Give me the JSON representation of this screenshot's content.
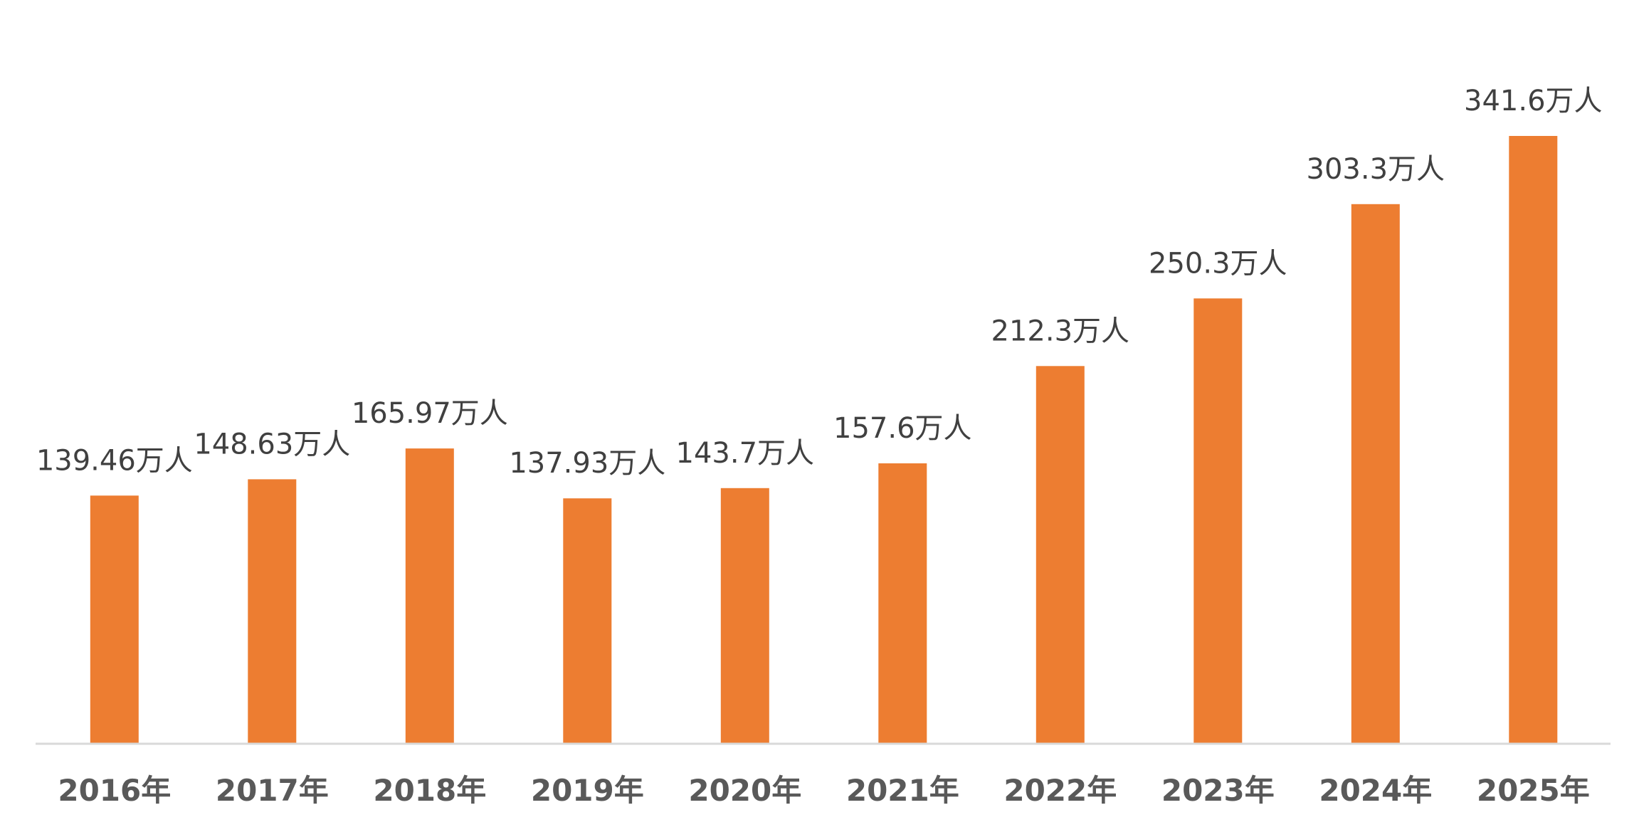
{
  "chart_data": {
    "type": "bar",
    "title": "",
    "xlabel": "",
    "ylabel": "",
    "categories": [
      "2016年",
      "2017年",
      "2018年",
      "2019年",
      "2020年",
      "2021年",
      "2022年",
      "2023年",
      "2024年",
      "2025年"
    ],
    "values": [
      139.46,
      148.63,
      165.97,
      137.93,
      143.7,
      157.6,
      212.3,
      250.3,
      303.3,
      341.6
    ],
    "data_labels": [
      "139.46万人",
      "148.63万人",
      "165.97万人",
      "137.93万人",
      "143.7万人",
      "157.6万人",
      "212.3万人",
      "250.3万人",
      "303.3万人",
      "341.6万人"
    ],
    "unit": "万人",
    "ylim": [
      0,
      420
    ],
    "grid": false,
    "legend": "none",
    "bar_color": "#ED7D31",
    "axis_color": "#D9D9D9"
  }
}
